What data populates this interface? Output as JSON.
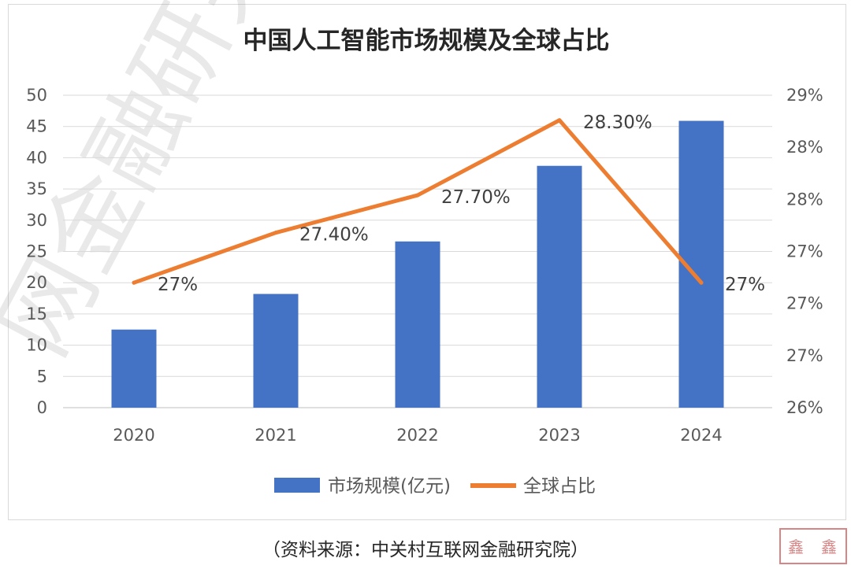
{
  "chart_data": {
    "type": "bar+line",
    "title": "中国人工智能市场规模及全球占比",
    "categories": [
      "2020",
      "2021",
      "2022",
      "2023",
      "2024"
    ],
    "series": [
      {
        "name": "市场规模(亿元)",
        "type": "bar",
        "axis": "left",
        "values": [
          12.5,
          18.2,
          26.6,
          38.7,
          45.9
        ],
        "color": "#4472c4"
      },
      {
        "name": "全球占比",
        "type": "line",
        "axis": "right",
        "values": [
          27.0,
          27.4,
          27.7,
          28.3,
          27.0
        ],
        "value_labels": [
          "27%",
          "27.40%",
          "27.70%",
          "28.30%",
          "27%"
        ],
        "color": "#ed7d31"
      }
    ],
    "left_axis": {
      "ylim": [
        0,
        50
      ],
      "ticks": [
        "0",
        "5",
        "10",
        "15",
        "20",
        "25",
        "30",
        "35",
        "40",
        "45",
        "50"
      ]
    },
    "right_axis": {
      "ylim": [
        26.0,
        28.5
      ],
      "ticks": [
        "26%",
        "27%",
        "27%",
        "27%",
        "28%",
        "28%",
        "29%"
      ]
    },
    "legend_position": "bottom",
    "grid": true
  },
  "source_note": "（资料来源：中关村互联网金融研究院）",
  "watermark": "网金融研究",
  "stamp": {
    "line1": "鑫",
    "line2": "鑫"
  }
}
